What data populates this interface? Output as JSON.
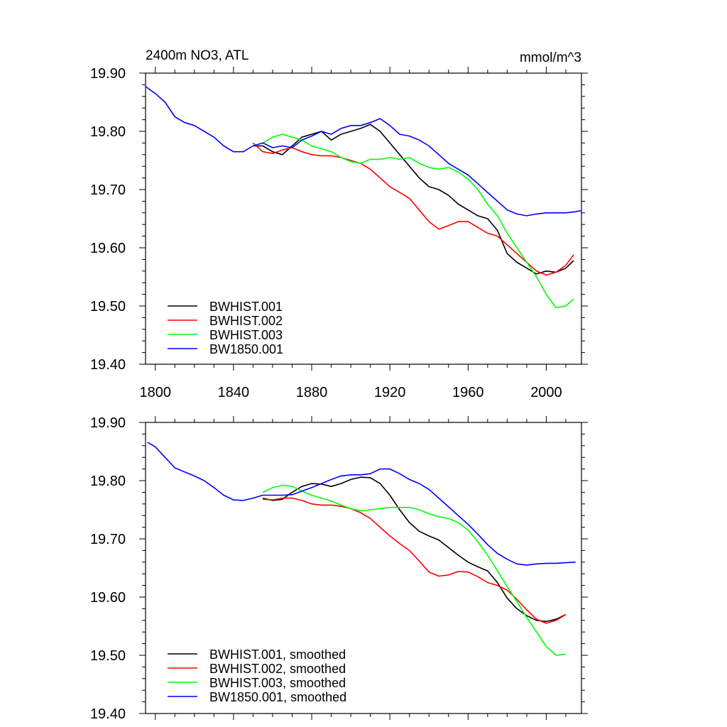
{
  "chart_data": [
    {
      "type": "line",
      "title": "2400m NO3, ATL",
      "units": "mmol/m^3",
      "xlim": [
        1795,
        2018
      ],
      "ylim": [
        19.4,
        19.9
      ],
      "x_ticks": [
        1800,
        1840,
        1880,
        1920,
        1960,
        2000
      ],
      "x_tick_labels": [
        "1800",
        "1840",
        "1880",
        "1920",
        "1960",
        "2000"
      ],
      "y_ticks": [
        19.4,
        19.5,
        19.6,
        19.7,
        19.8,
        19.9
      ],
      "y_tick_labels": [
        "19.40",
        "19.50",
        "19.60",
        "19.70",
        "19.80",
        "19.90"
      ],
      "legend_placement": "bottom-left",
      "series": [
        {
          "name": "BWHIST.001",
          "color": "#000000",
          "x": [
            1850,
            1855,
            1860,
            1865,
            1870,
            1875,
            1880,
            1885,
            1890,
            1895,
            1900,
            1905,
            1910,
            1915,
            1920,
            1925,
            1930,
            1935,
            1940,
            1945,
            1950,
            1955,
            1960,
            1965,
            1970,
            1975,
            1980,
            1985,
            1990,
            1995,
            2000,
            2005,
            2010,
            2014
          ],
          "y": [
            19.775,
            19.775,
            19.765,
            19.76,
            19.775,
            19.79,
            19.795,
            19.8,
            19.785,
            19.795,
            19.8,
            19.805,
            19.812,
            19.8,
            19.78,
            19.76,
            19.74,
            19.72,
            19.705,
            19.7,
            19.69,
            19.675,
            19.665,
            19.655,
            19.65,
            19.63,
            19.59,
            19.575,
            19.565,
            19.555,
            19.56,
            19.558,
            19.565,
            19.578
          ]
        },
        {
          "name": "BWHIST.002",
          "color": "#ff0000",
          "x": [
            1850,
            1855,
            1860,
            1865,
            1870,
            1875,
            1880,
            1885,
            1890,
            1895,
            1900,
            1905,
            1910,
            1915,
            1920,
            1925,
            1930,
            1935,
            1940,
            1945,
            1950,
            1955,
            1960,
            1965,
            1970,
            1975,
            1980,
            1985,
            1990,
            1995,
            2000,
            2005,
            2010,
            2014
          ],
          "y": [
            19.78,
            19.765,
            19.762,
            19.768,
            19.772,
            19.765,
            19.76,
            19.758,
            19.758,
            19.755,
            19.75,
            19.745,
            19.735,
            19.72,
            19.705,
            19.695,
            19.685,
            19.665,
            19.645,
            19.632,
            19.638,
            19.645,
            19.645,
            19.635,
            19.625,
            19.62,
            19.605,
            19.59,
            19.575,
            19.56,
            19.553,
            19.558,
            19.57,
            19.588
          ]
        },
        {
          "name": "BWHIST.003",
          "color": "#00ff00",
          "x": [
            1855,
            1860,
            1865,
            1870,
            1875,
            1880,
            1885,
            1890,
            1895,
            1900,
            1905,
            1910,
            1915,
            1920,
            1925,
            1930,
            1935,
            1940,
            1945,
            1950,
            1955,
            1960,
            1965,
            1970,
            1975,
            1980,
            1985,
            1990,
            1995,
            2000,
            2005,
            2010,
            2014
          ],
          "y": [
            19.78,
            19.79,
            19.795,
            19.79,
            19.785,
            19.775,
            19.77,
            19.765,
            19.755,
            19.748,
            19.745,
            19.752,
            19.752,
            19.755,
            19.752,
            19.755,
            19.745,
            19.738,
            19.735,
            19.738,
            19.73,
            19.718,
            19.7,
            19.675,
            19.655,
            19.625,
            19.6,
            19.575,
            19.55,
            19.52,
            19.497,
            19.5,
            19.512
          ]
        },
        {
          "name": "BW1850.001",
          "color": "#0000ff",
          "x": [
            1795,
            1800,
            1805,
            1810,
            1815,
            1820,
            1825,
            1830,
            1835,
            1840,
            1845,
            1850,
            1855,
            1860,
            1865,
            1870,
            1875,
            1880,
            1885,
            1890,
            1895,
            1900,
            1905,
            1910,
            1915,
            1920,
            1925,
            1930,
            1935,
            1940,
            1945,
            1950,
            1955,
            1960,
            1965,
            1970,
            1975,
            1980,
            1985,
            1990,
            1995,
            2000,
            2005,
            2010,
            2015,
            2018
          ],
          "y": [
            19.877,
            19.865,
            19.85,
            19.825,
            19.815,
            19.81,
            19.8,
            19.79,
            19.775,
            19.765,
            19.765,
            19.775,
            19.78,
            19.772,
            19.775,
            19.772,
            19.785,
            19.792,
            19.8,
            19.795,
            19.805,
            19.81,
            19.81,
            19.815,
            19.822,
            19.81,
            19.795,
            19.792,
            19.785,
            19.775,
            19.76,
            19.745,
            19.735,
            19.725,
            19.71,
            19.695,
            19.68,
            19.665,
            19.658,
            19.655,
            19.658,
            19.66,
            19.66,
            19.66,
            19.662,
            19.664
          ]
        }
      ]
    },
    {
      "type": "line",
      "xlim": [
        1795,
        2018
      ],
      "ylim": [
        19.4,
        19.9
      ],
      "x_ticks": [
        1800,
        1840,
        1880,
        1920,
        1960,
        2000
      ],
      "y_ticks": [
        19.4,
        19.5,
        19.6,
        19.7,
        19.8,
        19.9
      ],
      "y_tick_labels": [
        "19.40",
        "19.50",
        "19.60",
        "19.70",
        "19.80",
        "19.90"
      ],
      "legend_placement": "bottom-left",
      "series": [
        {
          "name": "BWHIST.001, smoothed",
          "color": "#000000",
          "x": [
            1855,
            1860,
            1865,
            1870,
            1875,
            1880,
            1885,
            1890,
            1895,
            1900,
            1905,
            1910,
            1915,
            1920,
            1925,
            1930,
            1935,
            1940,
            1945,
            1950,
            1955,
            1960,
            1965,
            1970,
            1975,
            1980,
            1985,
            1990,
            1995,
            2000,
            2005,
            2010
          ],
          "y": [
            19.77,
            19.766,
            19.768,
            19.78,
            19.79,
            19.795,
            19.794,
            19.79,
            19.795,
            19.802,
            19.806,
            19.805,
            19.795,
            19.775,
            19.75,
            19.728,
            19.713,
            19.705,
            19.698,
            19.685,
            19.672,
            19.66,
            19.652,
            19.645,
            19.625,
            19.598,
            19.58,
            19.568,
            19.56,
            19.558,
            19.562,
            19.57
          ]
        },
        {
          "name": "BWHIST.002, smoothed",
          "color": "#ff0000",
          "x": [
            1855,
            1860,
            1865,
            1870,
            1875,
            1880,
            1885,
            1890,
            1895,
            1900,
            1905,
            1910,
            1915,
            1920,
            1925,
            1930,
            1935,
            1940,
            1945,
            1950,
            1955,
            1960,
            1965,
            1970,
            1975,
            1980,
            1985,
            1990,
            1995,
            2000,
            2005,
            2010
          ],
          "y": [
            19.768,
            19.767,
            19.77,
            19.77,
            19.766,
            19.76,
            19.758,
            19.758,
            19.756,
            19.752,
            19.745,
            19.735,
            19.72,
            19.705,
            19.692,
            19.68,
            19.662,
            19.643,
            19.636,
            19.638,
            19.644,
            19.643,
            19.635,
            19.625,
            19.62,
            19.612,
            19.596,
            19.578,
            19.562,
            19.555,
            19.56,
            19.57
          ]
        },
        {
          "name": "BWHIST.003, smoothed",
          "color": "#00ff00",
          "x": [
            1855,
            1860,
            1865,
            1870,
            1875,
            1880,
            1885,
            1890,
            1895,
            1900,
            1905,
            1910,
            1915,
            1920,
            1925,
            1930,
            1935,
            1940,
            1945,
            1950,
            1955,
            1960,
            1965,
            1970,
            1975,
            1980,
            1985,
            1990,
            1995,
            2000,
            2005,
            2010
          ],
          "y": [
            19.78,
            19.788,
            19.792,
            19.79,
            19.782,
            19.775,
            19.77,
            19.765,
            19.758,
            19.752,
            19.748,
            19.75,
            19.752,
            19.754,
            19.754,
            19.754,
            19.75,
            19.743,
            19.738,
            19.735,
            19.728,
            19.715,
            19.695,
            19.672,
            19.645,
            19.618,
            19.592,
            19.565,
            19.54,
            19.515,
            19.5,
            19.502
          ]
        },
        {
          "name": "BW1850.001, smoothed",
          "color": "#0000ff",
          "x": [
            1796,
            1800,
            1805,
            1810,
            1815,
            1820,
            1825,
            1830,
            1835,
            1840,
            1845,
            1850,
            1855,
            1860,
            1865,
            1870,
            1875,
            1880,
            1885,
            1890,
            1895,
            1900,
            1905,
            1910,
            1915,
            1920,
            1925,
            1930,
            1935,
            1940,
            1945,
            1950,
            1955,
            1960,
            1965,
            1970,
            1975,
            1980,
            1985,
            1990,
            1995,
            2000,
            2005,
            2010,
            2015
          ],
          "y": [
            19.866,
            19.858,
            19.84,
            19.822,
            19.815,
            19.808,
            19.8,
            19.788,
            19.775,
            19.767,
            19.766,
            19.77,
            19.775,
            19.775,
            19.775,
            19.776,
            19.782,
            19.788,
            19.795,
            19.802,
            19.808,
            19.81,
            19.81,
            19.812,
            19.82,
            19.82,
            19.812,
            19.802,
            19.795,
            19.785,
            19.77,
            19.755,
            19.74,
            19.725,
            19.708,
            19.69,
            19.675,
            19.665,
            19.657,
            19.655,
            19.657,
            19.658,
            19.658,
            19.659,
            19.66
          ]
        }
      ]
    }
  ]
}
